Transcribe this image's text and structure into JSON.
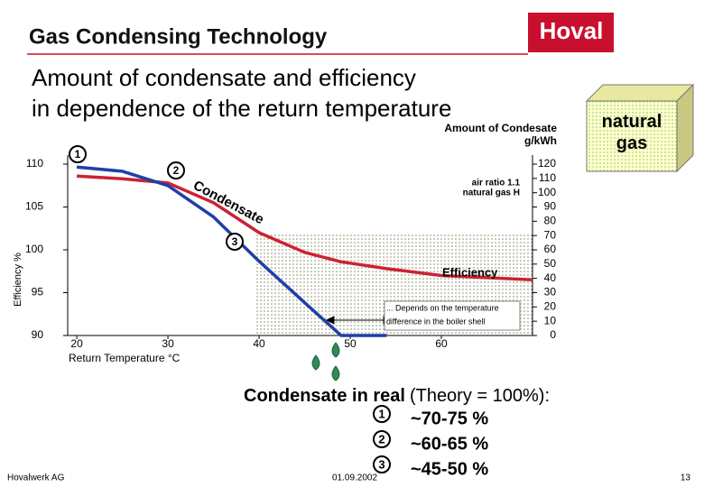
{
  "header": {
    "title": "Gas Condensing Technology",
    "logo": "Hoval"
  },
  "subtitle": [
    "Amount of condensate and efficiency",
    "in dependence of the return temperature"
  ],
  "badge": "natural gas",
  "chart_data": {
    "type": "line",
    "x": [
      20,
      25,
      30,
      35,
      40,
      45,
      49,
      54,
      60,
      70
    ],
    "xlim": [
      19,
      70
    ],
    "xticks": [
      20,
      30,
      40,
      50,
      60
    ],
    "ylim": [
      90,
      110
    ],
    "yticks": [
      90,
      95,
      100,
      105,
      110
    ],
    "y2lim": [
      0,
      120
    ],
    "y2ticks": [
      0,
      10,
      20,
      30,
      40,
      50,
      60,
      70,
      80,
      90,
      100,
      110,
      120
    ],
    "x_label": "Return Temperature °C",
    "y_label": "Efficiency %",
    "y2_label": [
      "Amount of Condesate",
      "g/kWh"
    ],
    "series": [
      {
        "name": "Efficiency",
        "color": "#cc2233",
        "values": [
          108.6,
          108.3,
          107.8,
          105.5,
          102,
          99.7,
          98.6,
          97.8,
          97,
          96.5
        ]
      },
      {
        "name": "Condensate",
        "color": "#1f3fa8",
        "axis": "y2",
        "values": [
          118,
          115,
          105,
          83,
          52,
          23,
          0,
          0,
          null,
          null
        ]
      }
    ],
    "annotations": [
      "air ratio 1.1",
      "natural gas H",
      "... Depends on the temperature",
      "difference in the boiler shell"
    ],
    "markers": [
      "1",
      "2",
      "3"
    ]
  },
  "summary": {
    "heading": "Condensate in real",
    "note": "(Theory = 100%):",
    "items": [
      {
        "marker": "1",
        "text": "~70-75 %"
      },
      {
        "marker": "2",
        "text": "~60-65 %"
      },
      {
        "marker": "3",
        "text": "~45-50 %"
      }
    ]
  },
  "footer": {
    "company": "Hovalwerk AG",
    "date": "01.09.2002",
    "page": "13"
  }
}
